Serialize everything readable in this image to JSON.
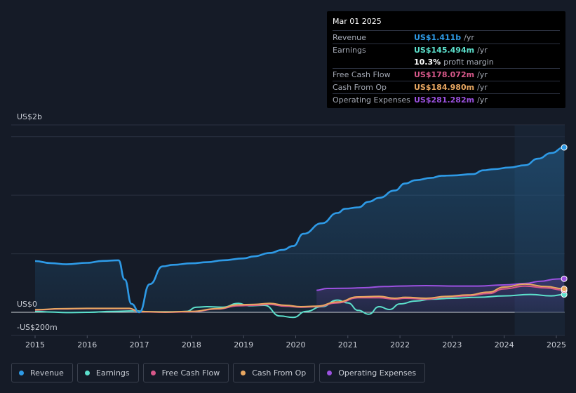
{
  "tooltip": {
    "date": "Mar 01 2025",
    "rows": [
      {
        "label": "Revenue",
        "value": "US$1.411b",
        "unit": "/yr",
        "color": "#2e9ae6"
      },
      {
        "label": "Earnings",
        "value": "US$145.494m",
        "unit": "/yr",
        "color": "#5ce0cc"
      },
      {
        "label": "",
        "value": "10.3%",
        "unit": "profit margin",
        "color": "#ffffff"
      },
      {
        "label": "Free Cash Flow",
        "value": "US$178.072m",
        "unit": "/yr",
        "color": "#d8588a"
      },
      {
        "label": "Cash From Op",
        "value": "US$184.980m",
        "unit": "/yr",
        "color": "#e8a761"
      },
      {
        "label": "Operating Expenses",
        "value": "US$281.282m",
        "unit": "/yr",
        "color": "#9b51e0"
      }
    ]
  },
  "legend": [
    {
      "label": "Revenue",
      "color": "#2e9ae6"
    },
    {
      "label": "Earnings",
      "color": "#5ce0cc"
    },
    {
      "label": "Free Cash Flow",
      "color": "#d8588a"
    },
    {
      "label": "Cash From Op",
      "color": "#e8a761"
    },
    {
      "label": "Operating Expenses",
      "color": "#9b51e0"
    }
  ],
  "chart_data": {
    "type": "line",
    "title": "",
    "ylabel_top": "US$2b",
    "zero_label": "US$0",
    "ylabel_bottom": "-US$200m",
    "ylim": [
      -200,
      2000
    ],
    "xlim": [
      2014.75,
      2025.25
    ],
    "xticks": [
      "2015",
      "2016",
      "2017",
      "2018",
      "2019",
      "2020",
      "2021",
      "2022",
      "2023",
      "2024",
      "2025"
    ],
    "forecast_start": 2024.2,
    "series": [
      {
        "name": "Revenue",
        "color": "#2e9ae6",
        "fill": true,
        "x": [
          2015.0,
          2015.3,
          2015.6,
          2016.0,
          2016.3,
          2016.6,
          2016.72,
          2016.85,
          2017.0,
          2017.2,
          2017.45,
          2017.65,
          2018.0,
          2018.3,
          2018.6,
          2019.0,
          2019.2,
          2019.5,
          2019.75,
          2019.95,
          2020.15,
          2020.5,
          2020.8,
          2020.95,
          2021.2,
          2021.4,
          2021.6,
          2021.9,
          2022.1,
          2022.3,
          2022.6,
          2022.8,
          2023.0,
          2023.4,
          2023.6,
          2023.8,
          2024.1,
          2024.4,
          2024.65,
          2024.9,
          2025.15
        ],
        "values": [
          547,
          525,
          512,
          528,
          548,
          555,
          350,
          90,
          0,
          300,
          490,
          507,
          523,
          535,
          555,
          575,
          597,
          634,
          666,
          707,
          838,
          950,
          1060,
          1105,
          1120,
          1180,
          1222,
          1300,
          1375,
          1410,
          1435,
          1458,
          1460,
          1475,
          1515,
          1527,
          1545,
          1570,
          1640,
          1700,
          1760
        ]
      },
      {
        "name": "Earnings",
        "color": "#5ce0cc",
        "fill": false,
        "x": [
          2015.0,
          2015.3,
          2015.6,
          2016.0,
          2016.5,
          2016.9,
          2017.2,
          2017.7,
          2017.9,
          2018.1,
          2018.3,
          2018.6,
          2018.9,
          2019.1,
          2019.4,
          2019.7,
          2019.95,
          2020.2,
          2020.5,
          2020.8,
          2021.0,
          2021.2,
          2021.4,
          2021.6,
          2021.8,
          2022.0,
          2022.3,
          2022.6,
          2023.0,
          2023.5,
          2024.0,
          2024.5,
          2024.9,
          2025.15
        ],
        "values": [
          10,
          3,
          -3,
          0,
          10,
          15,
          5,
          5,
          10,
          55,
          60,
          55,
          95,
          70,
          75,
          -40,
          -55,
          10,
          60,
          130,
          100,
          20,
          -20,
          60,
          30,
          90,
          120,
          140,
          150,
          160,
          175,
          190,
          175,
          190
        ]
      },
      {
        "name": "Free Cash Flow",
        "color": "#d8588a",
        "fill": false,
        "x": [
          2015.0,
          2015.5,
          2016.0,
          2016.5,
          2016.8,
          2017.0,
          2017.5,
          2018.0,
          2018.5,
          2018.9,
          2019.2,
          2019.5,
          2019.8,
          2020.1,
          2020.4,
          2020.8,
          2021.2,
          2021.6,
          2021.9,
          2022.1,
          2022.5,
          2022.9,
          2023.3,
          2023.7,
          2024.0,
          2024.4,
          2024.8,
          2025.15
        ],
        "values": [
          25,
          35,
          40,
          40,
          40,
          5,
          0,
          5,
          35,
          70,
          75,
          85,
          65,
          55,
          60,
          100,
          155,
          155,
          140,
          150,
          140,
          165,
          175,
          200,
          250,
          280,
          260,
          235
        ]
      },
      {
        "name": "Cash From Op",
        "color": "#e8a761",
        "fill": false,
        "x": [
          2015.0,
          2015.5,
          2016.0,
          2016.5,
          2016.8,
          2017.0,
          2017.5,
          2018.0,
          2018.5,
          2018.9,
          2019.2,
          2019.5,
          2019.8,
          2020.1,
          2020.4,
          2020.8,
          2021.2,
          2021.6,
          2021.9,
          2022.1,
          2022.5,
          2022.9,
          2023.3,
          2023.7,
          2024.0,
          2024.4,
          2024.8,
          2025.15
        ],
        "values": [
          28,
          38,
          42,
          42,
          42,
          8,
          3,
          10,
          40,
          80,
          85,
          95,
          75,
          60,
          65,
          110,
          165,
          170,
          150,
          160,
          150,
          170,
          185,
          215,
          270,
          300,
          275,
          250
        ]
      },
      {
        "name": "Operating Expenses",
        "color": "#9b51e0",
        "fill": true,
        "x": [
          2020.4,
          2020.6,
          2021.0,
          2021.3,
          2021.7,
          2022.0,
          2022.5,
          2023.0,
          2023.5,
          2024.0,
          2024.4,
          2024.7,
          2025.0,
          2025.15
        ],
        "values": [
          235,
          255,
          257,
          262,
          275,
          280,
          285,
          280,
          280,
          292,
          308,
          332,
          355,
          358
        ]
      }
    ]
  }
}
